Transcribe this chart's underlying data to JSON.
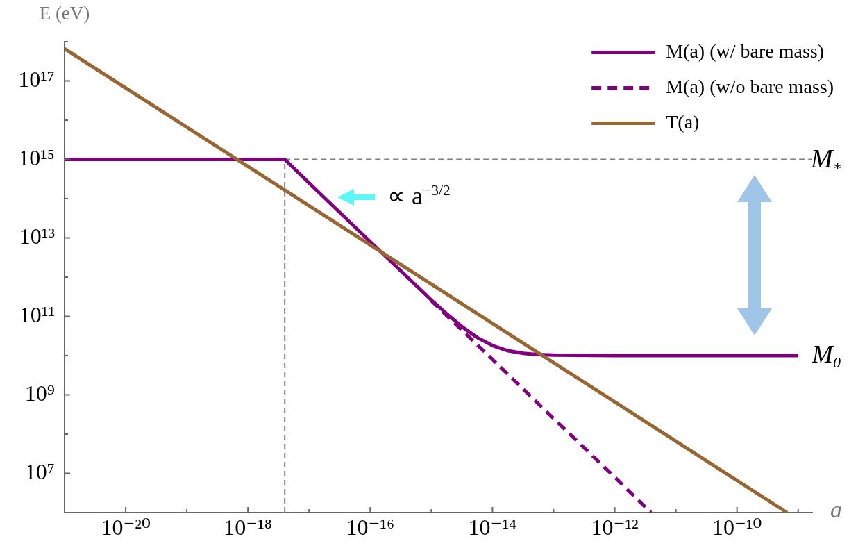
{
  "chart_data": {
    "type": "line",
    "xlabel": "a",
    "ylabel": "E (eV)",
    "log": "xy",
    "legend": "top right",
    "marker": "none",
    "xlim": [
      1e-21,
      1.7e-09
    ],
    "ylim": [
      1000000.0,
      1e+18
    ],
    "xticks": [
      {
        "value": 1e-20,
        "label": "10⁻²⁰"
      },
      {
        "value": 1e-19,
        "label": null
      },
      {
        "value": 1e-18,
        "label": "10⁻¹⁸"
      },
      {
        "value": 1e-17,
        "label": null
      },
      {
        "value": 1e-16,
        "label": "10⁻¹⁶"
      },
      {
        "value": 1e-15,
        "label": null
      },
      {
        "value": 1e-14,
        "label": "10⁻¹⁴"
      },
      {
        "value": 1e-13,
        "label": null
      },
      {
        "value": 1e-12,
        "label": "10⁻¹²"
      },
      {
        "value": 1e-11,
        "label": null
      },
      {
        "value": 1e-10,
        "label": "10⁻¹⁰"
      },
      {
        "value": 1e-09,
        "label": null
      }
    ],
    "yticks": [
      {
        "value": 10000000.0,
        "label": "10⁷"
      },
      {
        "value": 100000000.0,
        "label": null
      },
      {
        "value": 1000000000.0,
        "label": "10⁹"
      },
      {
        "value": 10000000000.0,
        "label": null
      },
      {
        "value": 100000000000.0,
        "label": "10¹¹"
      },
      {
        "value": 1000000000000.0,
        "label": null
      },
      {
        "value": 10000000000000.0,
        "label": "10¹³"
      },
      {
        "value": 100000000000000.0,
        "label": null
      },
      {
        "value": 1000000000000000.0,
        "label": "10¹⁵"
      },
      {
        "value": 1e+16,
        "label": null
      },
      {
        "value": 1e+17,
        "label": "10¹⁷"
      },
      {
        "value": 1e+18,
        "label": null
      }
    ],
    "series": [
      {
        "name": "M(a) (w/ bare mass)",
        "color": "#800080",
        "line_style": "solid",
        "x": [
          1e-21,
          4e-18,
          1e-17,
          1e-16,
          1e-15,
          1.8e-15,
          3.2e-15,
          5.6e-15,
          1e-14,
          1.8e-14,
          3.2e-14,
          5.6e-14,
          1e-13,
          1e-12,
          1e-09
        ],
        "values": [
          1000000000000000.0,
          1000000000000000.0,
          250000000000000.0,
          8000000000000.0,
          260000000000.0,
          115000000000.0,
          54000000000.0,
          29000000000.0,
          18000000000.0,
          13300000000.0,
          11400000000.0,
          10600000000.0,
          10300000000.0,
          10000000000.0,
          10000000000.0
        ]
      },
      {
        "name": "M(a) (w/o bare mass)",
        "color": "#800080",
        "line_style": "dashed",
        "x": [
          1e-15,
          1e-14,
          1e-13,
          1e-12,
          3.9e-12
        ],
        "values": [
          250000000000.0,
          8000000000.0,
          250000000.0,
          8000000.0,
          1000000.0
        ]
      },
      {
        "name": "T(a)",
        "color": "#996633",
        "line_style": "solid",
        "x": [
          1e-21,
          1e-18,
          1e-15,
          1e-12,
          6.6e-10
        ],
        "values": [
          6.6e+17,
          660000000000000.0,
          660000000000.0,
          660000000.0,
          1000000.0
        ]
      }
    ],
    "ref_lines": [
      {
        "axis": "y",
        "value": 1000000000000000.0,
        "label": "M$_{*}$",
        "color": "#808080",
        "line_style": "dashed"
      },
      {
        "axis": "x",
        "value": 4e-18,
        "color": "#808080",
        "line_style": "dashed"
      }
    ],
    "annotations": [
      "∝ a$^{−3/2}$",
      {
        "text": "M₀",
        "x": 1e-09,
        "y": 10000000000.0
      }
    ]
  }
}
